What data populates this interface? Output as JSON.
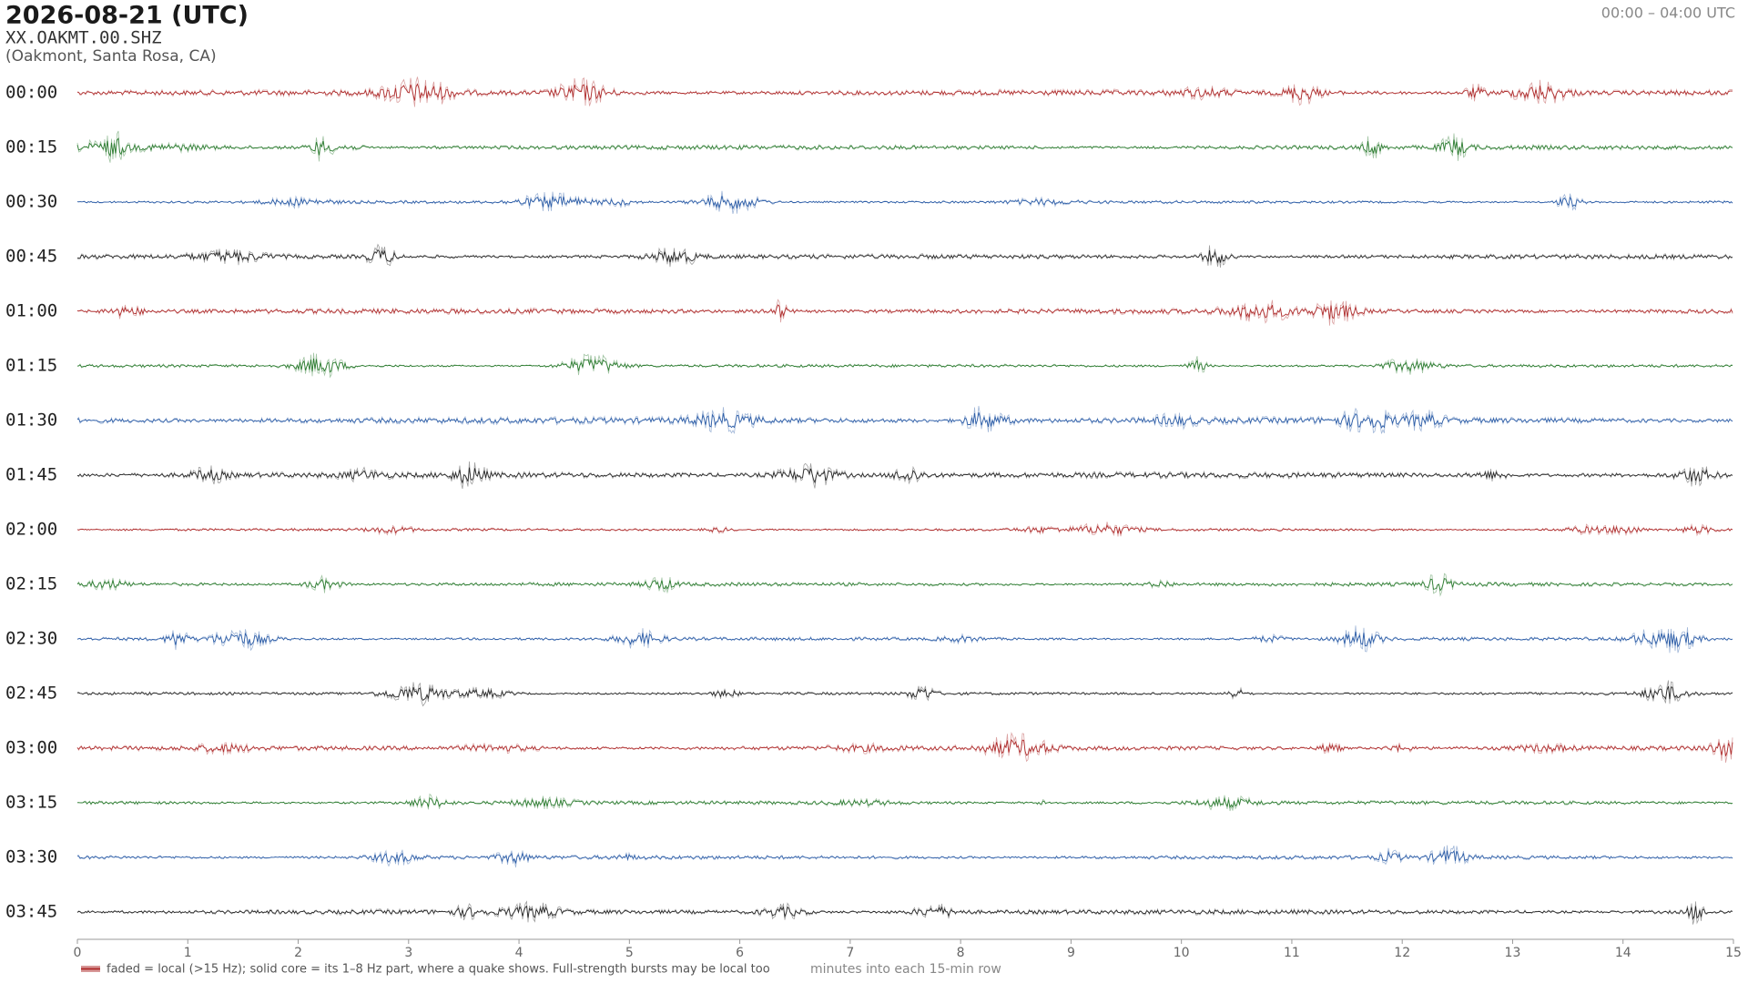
{
  "chart_data": {
    "type": "helicorder",
    "title": "2026-08-21  (UTC)",
    "station": "XX.OAKMT.00.SHZ",
    "location": "(Oakmont, Santa Rosa, CA)",
    "time_range": "00:00 – 04:00 UTC",
    "categories": [
      "00:00",
      "00:15",
      "00:30",
      "00:45",
      "01:00",
      "01:15",
      "01:30",
      "01:45",
      "02:00",
      "02:15",
      "02:30",
      "02:45",
      "03:00",
      "03:15",
      "03:30",
      "03:45"
    ],
    "colors": [
      "#b03030",
      "#2e7d32",
      "#2f5fa8",
      "#2a2a2a"
    ],
    "xlim": [
      0,
      15
    ],
    "xticks": [
      0,
      1,
      2,
      3,
      4,
      5,
      6,
      7,
      8,
      9,
      10,
      11,
      12,
      13,
      14,
      15
    ],
    "xlabel": "minutes into each 15-min row",
    "legend": "faded = local (>15 Hz); solid core = its 1–8 Hz part, where a quake shows. Full-strength bursts may be local too"
  }
}
